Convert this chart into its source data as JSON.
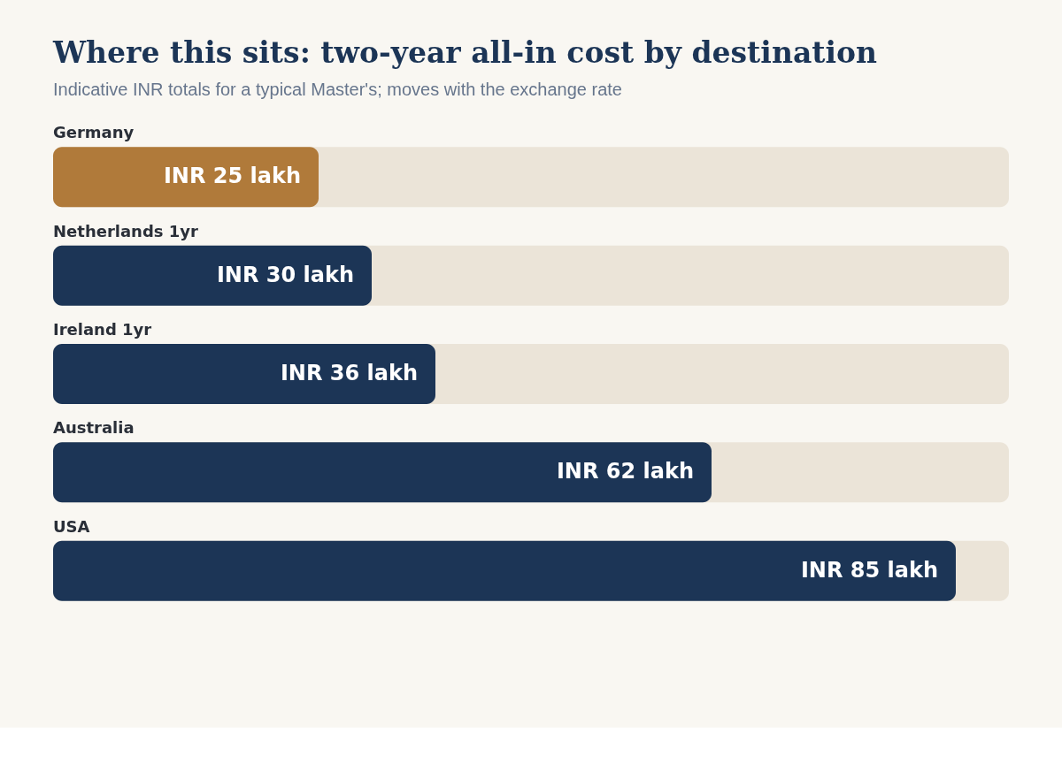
{
  "chart_data": {
    "type": "bar",
    "orientation": "horizontal",
    "title": "Where this sits: two-year all-in cost by destination",
    "subtitle": "Indicative INR totals for a typical Master's; moves with the exchange rate",
    "categories": [
      "Germany",
      "Netherlands 1yr",
      "Ireland 1yr",
      "Australia",
      "USA"
    ],
    "values": [
      25,
      30,
      36,
      62,
      85
    ],
    "colors": [
      "#b07a3a",
      "#1c3556",
      "#1c3556",
      "#1c3556",
      "#1c3556"
    ],
    "value_labels": [
      "INR 25 lakh",
      "INR 30 lakh",
      "INR 36 lakh",
      "INR 62 lakh",
      "INR 85 lakh"
    ],
    "xlim": [
      0,
      90
    ],
    "tick_labels": false
  }
}
